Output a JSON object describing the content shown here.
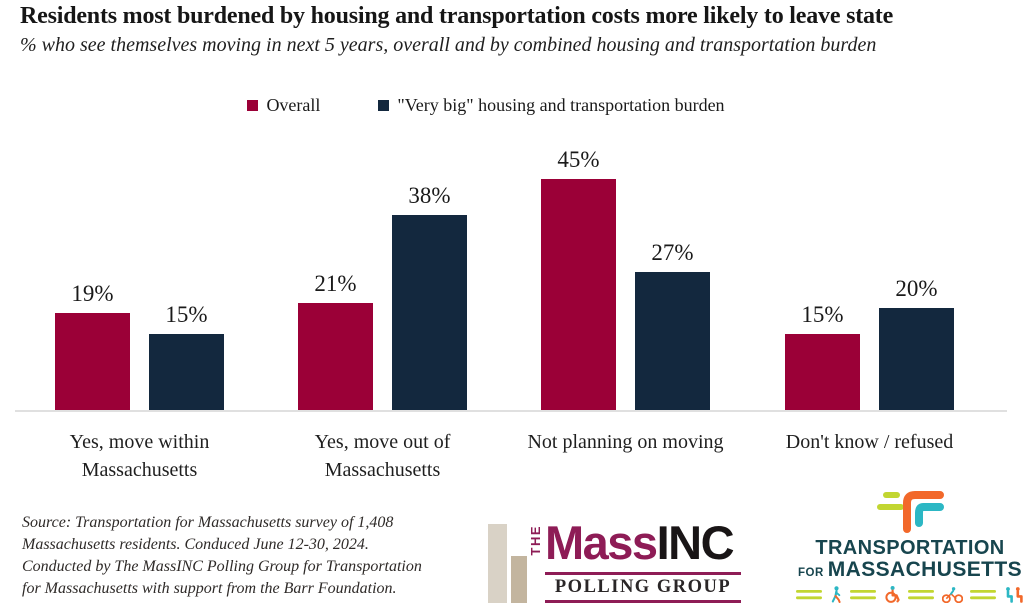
{
  "title": "Residents most burdened by housing and transportation costs more likely to leave state",
  "subtitle": "% who see themselves moving in next 5 years, overall and by combined housing and transportation burden",
  "chart_data": {
    "type": "bar",
    "categories": [
      "Yes, move within Massachusetts",
      "Yes, move out of Massachusetts",
      "Not planning on moving",
      "Don't know / refused"
    ],
    "series": [
      {
        "name": "Overall",
        "color": "#9B0037",
        "values": [
          19,
          21,
          45,
          15
        ]
      },
      {
        "name": "\"Very big\" housing and transportation burden",
        "color": "#13283E",
        "values": [
          15,
          38,
          27,
          20
        ]
      }
    ],
    "value_suffix": "%",
    "ylim": [
      0,
      50
    ],
    "gridlines": false,
    "value_labels": "above bars",
    "legend_position": "top-center",
    "axis_line_color": "#E0E0E0"
  },
  "source_note": "Source: Transportation for Massachusetts survey of 1,408\nMassachusetts residents. Conduced June 12-30, 2024.\nConducted by The MassINC Polling Group for Transportation\nfor Massachusetts with support from the Barr Foundation.",
  "logos": {
    "massinc": {
      "the": "THE",
      "mass": "Mass",
      "inc": "INC",
      "polling_group": "POLLING GROUP",
      "accent_color": "#8E1C56",
      "bar_colors": [
        "#D9D2C6",
        "#C3B59F"
      ]
    },
    "t4ma": {
      "line1": "TRANSPORTATION",
      "for_word": "FOR",
      "line2": "MASSACHUSETTS",
      "text_color": "#17454E",
      "mark_colors": {
        "orange": "#F2682A",
        "teal": "#2CB7C4",
        "lime": "#C2D631"
      },
      "icons": [
        "road-dashes",
        "pedestrian",
        "wheelchair",
        "cyclist",
        "passengers"
      ]
    }
  }
}
